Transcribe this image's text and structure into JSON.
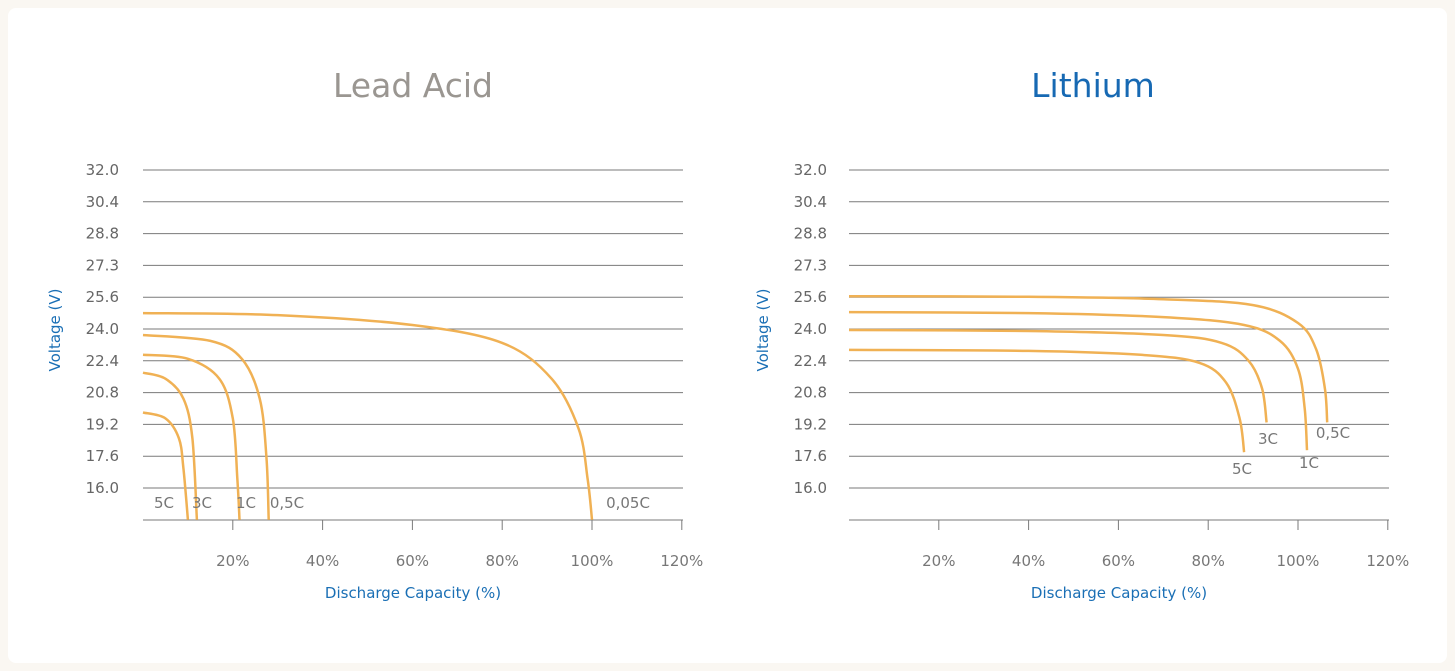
{
  "colors": {
    "curve": "#f0b154",
    "title_lead": "#9a9691",
    "title_lithium": "#1769b3",
    "axis_label": "#1a6fb5"
  },
  "chart_data": [
    {
      "type": "line",
      "title": "Lead Acid",
      "xlabel": "Discharge Capacity (%)",
      "ylabel": "Voltage (V)",
      "y_ticks": [
        "32.0",
        "30.4",
        "28.8",
        "27.3",
        "25.6",
        "24.0",
        "22.4",
        "20.8",
        "19.2",
        "17.6",
        "16.0"
      ],
      "x_ticks": [
        "20%",
        "40%",
        "60%",
        "80%",
        "100%",
        "120%"
      ],
      "xlim": [
        0,
        120
      ],
      "series": [
        {
          "name": "5C",
          "points": [
            [
              0,
              19.8
            ],
            [
              5,
              19.5
            ],
            [
              8,
              18.5
            ],
            [
              9,
              17.0
            ],
            [
              10,
              14.4
            ]
          ]
        },
        {
          "name": "3C",
          "points": [
            [
              0,
              21.8
            ],
            [
              5,
              21.5
            ],
            [
              9,
              20.5
            ],
            [
              11,
              18.5
            ],
            [
              12,
              14.4
            ]
          ]
        },
        {
          "name": "1C",
          "points": [
            [
              0,
              22.7
            ],
            [
              10,
              22.5
            ],
            [
              17,
              21.5
            ],
            [
              20,
              19.5
            ],
            [
              21,
              16.5
            ],
            [
              21.5,
              14.4
            ]
          ]
        },
        {
          "name": "0,5C",
          "points": [
            [
              0,
              23.7
            ],
            [
              15,
              23.4
            ],
            [
              22,
              22.5
            ],
            [
              26,
              20.5
            ],
            [
              27.5,
              17.5
            ],
            [
              28,
              14.4
            ]
          ]
        },
        {
          "name": "0,05C",
          "points": [
            [
              0,
              24.8
            ],
            [
              30,
              24.7
            ],
            [
              60,
              24.2
            ],
            [
              80,
              23.3
            ],
            [
              91,
              21.5
            ],
            [
              97,
              19.0
            ],
            [
              99,
              16.5
            ],
            [
              100,
              14.4
            ]
          ]
        }
      ]
    },
    {
      "type": "line",
      "title": "Lithium",
      "xlabel": "Discharge Capacity (%)",
      "ylabel": "Voltage (V)",
      "y_ticks": [
        "32.0",
        "30.4",
        "28.8",
        "27.3",
        "25.6",
        "24.0",
        "22.4",
        "20.8",
        "19.2",
        "17.6",
        "16.0"
      ],
      "x_ticks": [
        "20%",
        "40%",
        "60%",
        "80%",
        "100%",
        "120%"
      ],
      "xlim": [
        0,
        120
      ],
      "series": [
        {
          "name": "0,5C",
          "points": [
            [
              0,
              25.65
            ],
            [
              40,
              25.62
            ],
            [
              70,
              25.5
            ],
            [
              90,
              25.2
            ],
            [
              100,
              24.3
            ],
            [
              104,
              23.0
            ],
            [
              106,
              21.0
            ],
            [
              106.5,
              19.3
            ]
          ]
        },
        {
          "name": "1C",
          "points": [
            [
              0,
              24.85
            ],
            [
              40,
              24.8
            ],
            [
              70,
              24.6
            ],
            [
              88,
              24.2
            ],
            [
              96,
              23.4
            ],
            [
              100,
              22.0
            ],
            [
              101.5,
              20.0
            ],
            [
              102,
              17.9
            ]
          ]
        },
        {
          "name": "3C",
          "points": [
            [
              0,
              23.95
            ],
            [
              40,
              23.9
            ],
            [
              70,
              23.7
            ],
            [
              83,
              23.3
            ],
            [
              89,
              22.4
            ],
            [
              92,
              21.0
            ],
            [
              93,
              19.3
            ]
          ]
        },
        {
          "name": "5C",
          "points": [
            [
              0,
              22.95
            ],
            [
              40,
              22.9
            ],
            [
              65,
              22.7
            ],
            [
              78,
              22.3
            ],
            [
              84,
              21.3
            ],
            [
              87,
              19.5
            ],
            [
              88,
              17.8
            ]
          ]
        }
      ]
    }
  ]
}
